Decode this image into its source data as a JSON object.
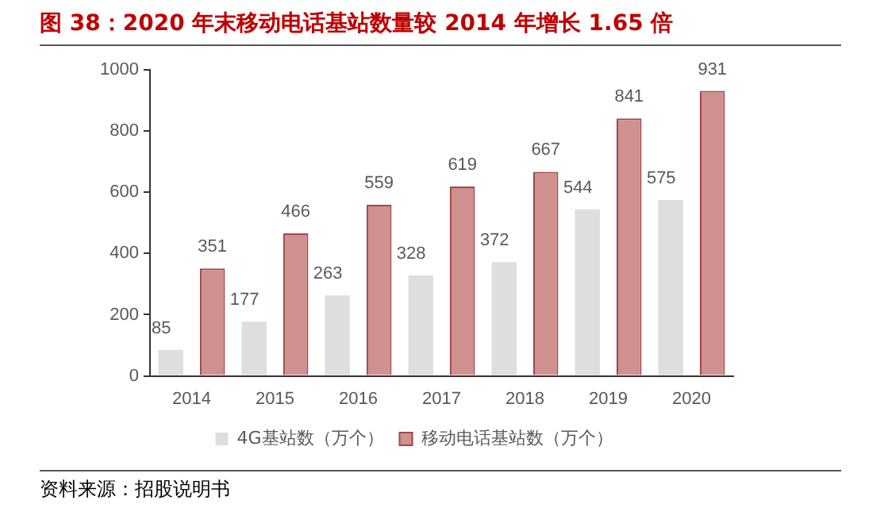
{
  "chart_data": {
    "type": "bar",
    "title": "图 38：2020 年末移动电话基站数量较 2014 年增长 1.65 倍",
    "categories": [
      "2014",
      "2015",
      "2016",
      "2017",
      "2018",
      "2019",
      "2020"
    ],
    "series": [
      {
        "name": "4G基站数（万个）",
        "color": "#dedede",
        "values": [
          85,
          177,
          263,
          328,
          372,
          544,
          575
        ]
      },
      {
        "name": "移动电话基站数（万个）",
        "color": "#d09090",
        "values": [
          351,
          466,
          559,
          619,
          667,
          841,
          931
        ]
      }
    ],
    "ylim": [
      0,
      1000
    ],
    "yticks": [
      0,
      200,
      400,
      600,
      800,
      1000
    ],
    "grid": false,
    "legend": "bottom",
    "data_labels": true,
    "annotations": [
      "资料来源：招股说明书"
    ]
  }
}
